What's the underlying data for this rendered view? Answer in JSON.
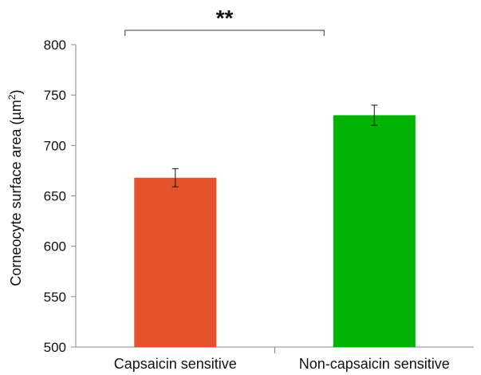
{
  "chart_data": {
    "type": "bar",
    "categories": [
      "Capsaicin sensitive",
      "Non-capsaicin sensitive"
    ],
    "values": [
      668,
      730
    ],
    "errors": [
      9,
      10
    ],
    "colors": [
      "#e4532c",
      "#00b300"
    ],
    "ylabel_main": "Corneocyte surface area (µm",
    "ylabel_sup": "2",
    "ylabel_close": ")",
    "ylim": [
      500,
      800
    ],
    "yticks": [
      500,
      550,
      600,
      650,
      700,
      750,
      800
    ],
    "significance": "**",
    "grid": false
  }
}
